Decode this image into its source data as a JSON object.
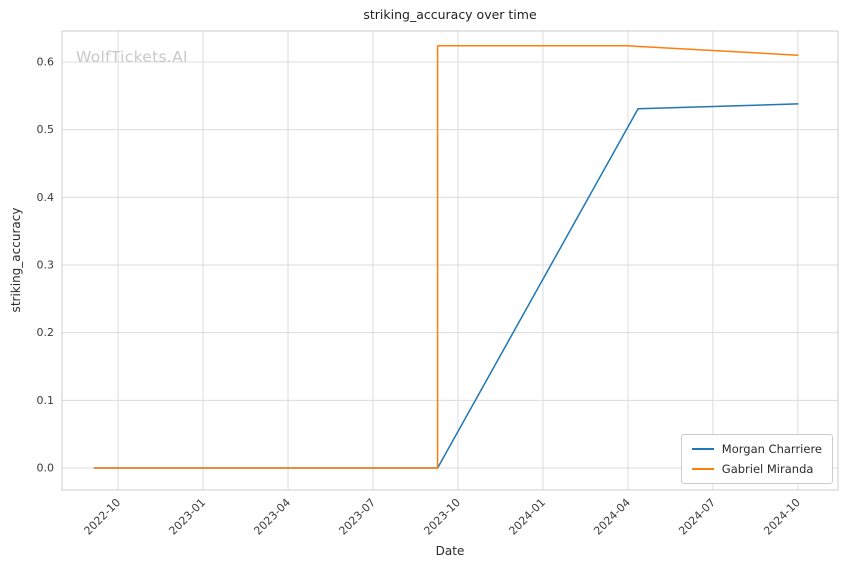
{
  "chart_data": {
    "type": "line",
    "title": "striking_accuracy over time",
    "xlabel": "Date",
    "ylabel": "striking_accuracy",
    "watermark": "WolfTickets.AI",
    "grid": true,
    "legend_position": "lower right",
    "xlim": [
      2022.585,
      2024.868
    ],
    "ylim": [
      -0.0325,
      0.6458
    ],
    "x_ticks": [
      {
        "v": 2022.75,
        "label": "2022-10"
      },
      {
        "v": 2023.0,
        "label": "2023-01"
      },
      {
        "v": 2023.25,
        "label": "2023-04"
      },
      {
        "v": 2023.5,
        "label": "2023-07"
      },
      {
        "v": 2023.75,
        "label": "2023-10"
      },
      {
        "v": 2024.0,
        "label": "2024-01"
      },
      {
        "v": 2024.25,
        "label": "2024-04"
      },
      {
        "v": 2024.5,
        "label": "2024-07"
      },
      {
        "v": 2024.75,
        "label": "2024-10"
      }
    ],
    "y_ticks": [
      {
        "v": 0.0,
        "label": "0.0"
      },
      {
        "v": 0.1,
        "label": "0.1"
      },
      {
        "v": 0.2,
        "label": "0.2"
      },
      {
        "v": 0.3,
        "label": "0.3"
      },
      {
        "v": 0.4,
        "label": "0.4"
      },
      {
        "v": 0.5,
        "label": "0.5"
      },
      {
        "v": 0.6,
        "label": "0.6"
      }
    ],
    "series": [
      {
        "name": "Morgan Charriere",
        "color": "#1f77b4",
        "points": [
          [
            2022.68,
            0.0
          ],
          [
            2023.69,
            0.0
          ],
          [
            2024.28,
            0.531
          ],
          [
            2024.75,
            0.538
          ]
        ]
      },
      {
        "name": "Gabriel Miranda",
        "color": "#ff7f0e",
        "points": [
          [
            2022.68,
            0.0
          ],
          [
            2023.69,
            0.0
          ],
          [
            2023.69,
            0.624
          ],
          [
            2024.25,
            0.624
          ],
          [
            2024.75,
            0.61
          ]
        ]
      }
    ],
    "colors": {
      "grid": "#dcdcdc",
      "spine": "#cccccc",
      "tick_label": "#3b3b3b",
      "watermark": "#c9c9c9"
    }
  }
}
